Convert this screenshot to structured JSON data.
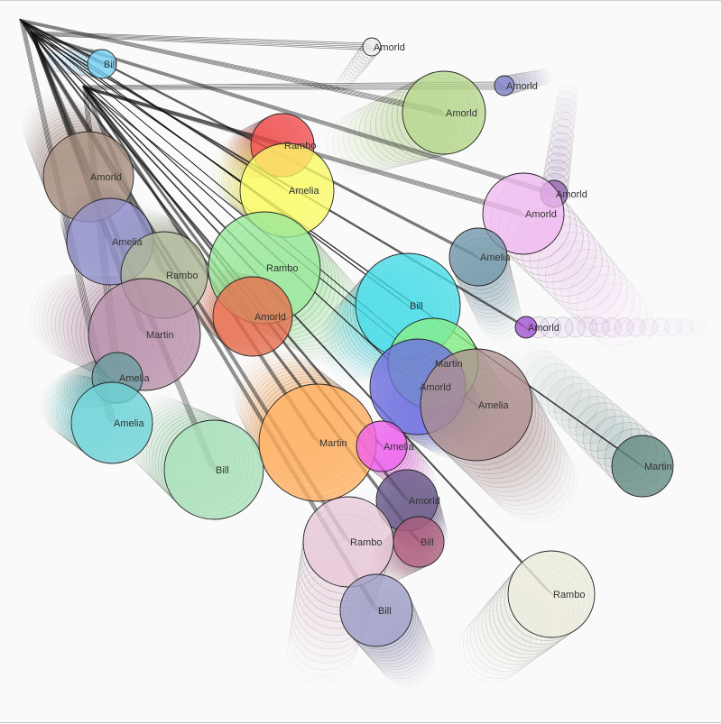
{
  "diagram": {
    "root_label": "",
    "trail_steps": 14,
    "nodes": [
      {
        "id": "n1",
        "label": "Bill",
        "color": "#7ad3f7",
        "r": 16
      },
      {
        "id": "n2",
        "label": "Amorld",
        "color": "#eeeeee",
        "r": 10
      },
      {
        "id": "n3",
        "label": "Amorld",
        "color": "#8080c8",
        "r": 11
      },
      {
        "id": "n4",
        "label": "Amorld",
        "color": "#b5d68a",
        "r": 46
      },
      {
        "id": "n5",
        "label": "Amorld",
        "color": "#a89080",
        "r": 50
      },
      {
        "id": "n6",
        "label": "Rambo",
        "color": "#f25050",
        "r": 35
      },
      {
        "id": "n7",
        "label": "Amelia",
        "color": "#fbfb6a",
        "r": 52
      },
      {
        "id": "n8",
        "label": "Amorld",
        "color": "#9060b0",
        "r": 15
      },
      {
        "id": "n9",
        "label": "Amorld",
        "color": "#f0b8f0",
        "r": 45
      },
      {
        "id": "n10",
        "label": "Amelia",
        "color": "#7096a8",
        "r": 32
      },
      {
        "id": "n11",
        "label": "Amelia",
        "color": "#9494cc",
        "r": 48
      },
      {
        "id": "n12",
        "label": "Rambo",
        "color": "#b0b89a",
        "r": 48
      },
      {
        "id": "n13",
        "label": "Rambo",
        "color": "#98e898",
        "r": 62
      },
      {
        "id": "n14",
        "label": "Martin",
        "color": "#b890aa",
        "r": 62
      },
      {
        "id": "n15",
        "label": "Amorld",
        "color": "#e87050",
        "r": 44
      },
      {
        "id": "n16",
        "label": "Bill",
        "color": "#48dde8",
        "r": 58
      },
      {
        "id": "n17",
        "label": "Amorld",
        "color": "#a050d0",
        "r": 12
      },
      {
        "id": "n18",
        "label": "Amelia",
        "color": "#6a9ea0",
        "r": 28
      },
      {
        "id": "n19",
        "label": "Martin",
        "color": "#88ee88",
        "r": 50
      },
      {
        "id": "n20",
        "label": "Amorld",
        "color": "#6e6ee0",
        "r": 53
      },
      {
        "id": "n21",
        "label": "Amelia",
        "color": "#b09090",
        "r": 62
      },
      {
        "id": "n22",
        "label": "Amelia",
        "color": "#70d5d8",
        "r": 45
      },
      {
        "id": "n23",
        "label": "Bill",
        "color": "#a8e0b8",
        "r": 55
      },
      {
        "id": "n24",
        "label": "Martin",
        "color": "#ffb060",
        "r": 65
      },
      {
        "id": "n25",
        "label": "Amelia",
        "color": "#ee60ee",
        "r": 28
      },
      {
        "id": "n26",
        "label": "Martin",
        "color": "#608880",
        "r": 34
      },
      {
        "id": "n27",
        "label": "Amorld",
        "color": "#685888",
        "r": 34
      },
      {
        "id": "n28",
        "label": "Rambo",
        "color": "#e8c8d8",
        "r": 50
      },
      {
        "id": "n29",
        "label": "Bill",
        "color": "#b06080",
        "r": 28
      },
      {
        "id": "n30",
        "label": "Rambo",
        "color": "#ecebdc",
        "r": 48
      },
      {
        "id": "n31",
        "label": "Bill",
        "color": "#a0a0c8",
        "r": 40
      }
    ]
  }
}
